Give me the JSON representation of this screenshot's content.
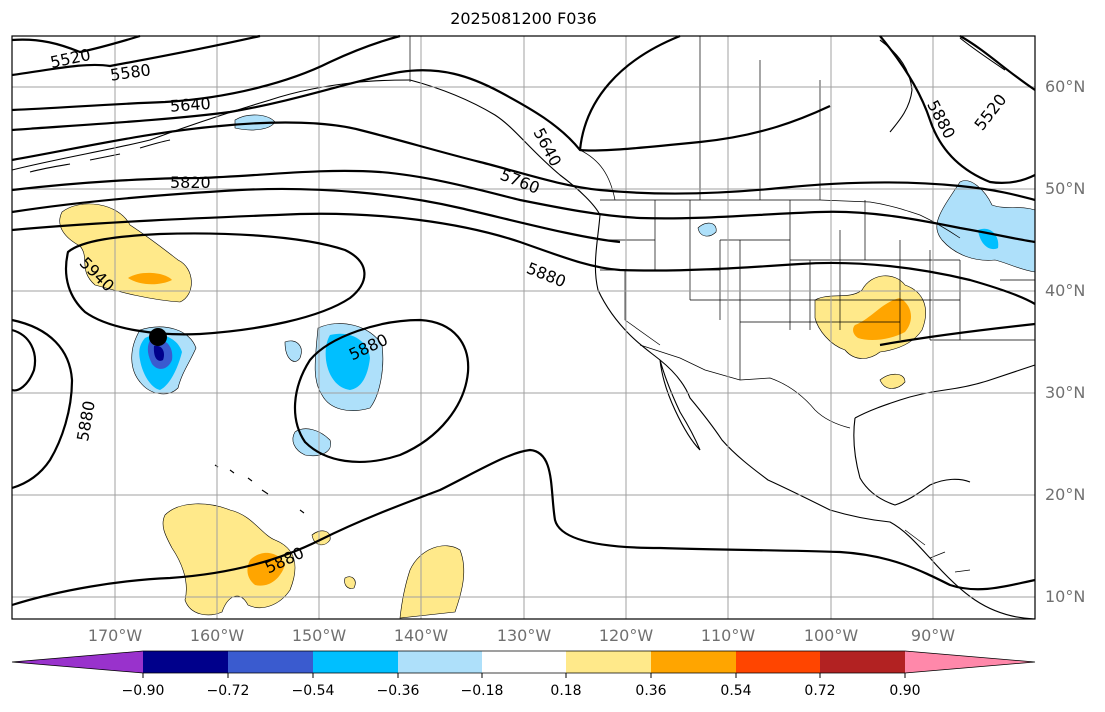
{
  "title": "2025081200 F036",
  "lat_labels": [
    "60°N",
    "50°N",
    "40°N",
    "30°N",
    "20°N",
    "10°N"
  ],
  "lon_labels": [
    "170°W",
    "160°W",
    "150°W",
    "140°W",
    "130°W",
    "120°W",
    "110°W",
    "100°W",
    "90°W"
  ],
  "contour_labels": [
    "5520",
    "5580",
    "5640",
    "5820",
    "5940",
    "5880",
    "5880",
    "5880",
    "5640",
    "5760",
    "5880",
    "5520",
    "5880"
  ],
  "colorbar": {
    "ticks": [
      "−0.90",
      "−0.72",
      "−0.54",
      "−0.36",
      "−0.18",
      "0.18",
      "0.36",
      "0.54",
      "0.72",
      "0.90"
    ],
    "colors": [
      "#9932cc",
      "#00008b",
      "#3a5bcf",
      "#00bfff",
      "#aee0fa",
      "#ffffff",
      "#ffe98a",
      "#ffa500",
      "#ff4500",
      "#b22222",
      "#ff88aa"
    ]
  },
  "colors": {
    "negative_light": "#aee0fa",
    "negative_mid": "#00bfff",
    "negative_strong": "#3a5bcf",
    "negative_max": "#00008b",
    "positive_light": "#ffe98a",
    "positive_mid": "#ffa500",
    "positive_strong": "#ff4500"
  }
}
